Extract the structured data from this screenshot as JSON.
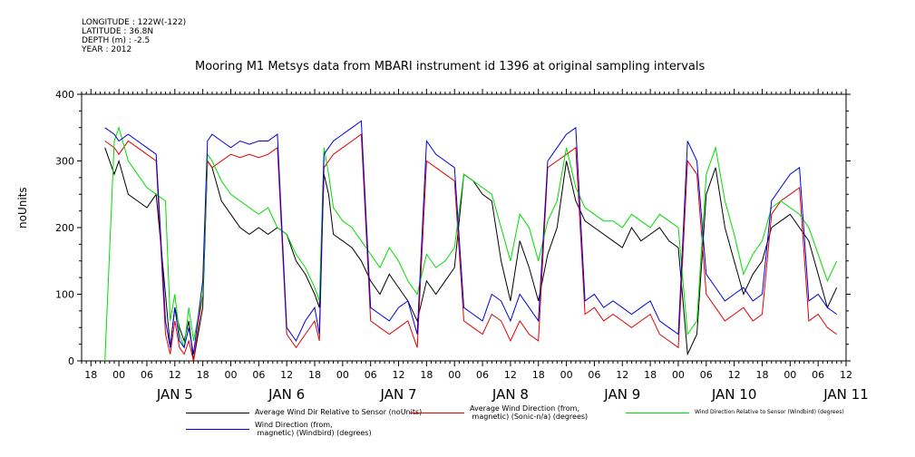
{
  "header": {
    "lines": [
      "LONGITUDE : 122W(-122)",
      "LATITUDE : 36.8N",
      "DEPTH (m) : -2.5",
      "YEAR : 2012"
    ]
  },
  "chart_data": {
    "type": "line",
    "title": "Mooring M1 Metsys data from MBARI instrument id 1396 at original sampling intervals",
    "ylabel": "noUnits",
    "xlabel": "",
    "ylim": [
      0,
      400
    ],
    "y_ticks": [
      0,
      100,
      200,
      300,
      400
    ],
    "xlim_hours": [
      -8,
      156
    ],
    "x_tick_hours": [
      "00",
      "06",
      "12",
      "18"
    ],
    "day_labels": [
      "JAN  5",
      "JAN  6",
      "JAN  7",
      "JAN  8",
      "JAN  9",
      "JAN 10",
      "JAN 11"
    ],
    "grid": false,
    "legend_position": "bottom",
    "series": [
      {
        "name": "Average Wind Dir Relative to Sensor (noUnits)",
        "color": "#000000",
        "x": [
          -3,
          -1,
          0,
          2,
          4,
          6,
          8,
          10,
          11,
          12,
          13,
          14,
          15,
          16,
          18,
          19,
          20,
          22,
          24,
          26,
          28,
          30,
          32,
          34,
          36,
          38,
          40,
          42,
          43,
          44,
          45,
          46,
          48,
          50,
          52,
          54,
          56,
          58,
          60,
          62,
          64,
          66,
          68,
          70,
          72,
          74,
          76,
          78,
          80,
          82,
          84,
          86,
          88,
          90,
          92,
          94,
          96,
          98,
          100,
          102,
          104,
          106,
          108,
          110,
          112,
          114,
          116,
          118,
          120,
          122,
          124,
          126,
          128,
          130,
          132,
          134,
          136,
          138,
          140,
          142,
          144,
          146,
          148,
          150,
          152,
          154
        ],
        "y": [
          320,
          280,
          300,
          250,
          240,
          230,
          250,
          100,
          20,
          80,
          50,
          30,
          60,
          0,
          80,
          300,
          290,
          240,
          220,
          200,
          190,
          200,
          190,
          200,
          190,
          150,
          130,
          100,
          80,
          280,
          250,
          190,
          180,
          170,
          150,
          120,
          100,
          130,
          110,
          90,
          60,
          120,
          100,
          120,
          140,
          280,
          270,
          250,
          240,
          150,
          90,
          180,
          140,
          90,
          160,
          200,
          300,
          240,
          210,
          200,
          190,
          180,
          170,
          200,
          180,
          190,
          200,
          180,
          170,
          10,
          40,
          250,
          290,
          200,
          150,
          100,
          130,
          150,
          200,
          210,
          220,
          200,
          180,
          130,
          80,
          110
        ],
        "label_x": [
          -3,
          -1,
          0,
          2,
          4,
          6,
          8,
          10,
          11,
          12,
          13,
          14,
          15,
          16,
          18,
          19,
          20,
          22,
          24,
          26,
          28,
          30,
          32,
          34,
          36,
          38,
          40,
          42,
          43,
          44,
          45,
          46,
          48,
          50,
          52,
          54,
          56,
          58,
          60,
          62,
          64,
          66,
          68,
          70,
          72,
          74,
          76,
          78,
          80,
          82,
          84,
          86,
          88,
          90,
          92,
          94,
          96,
          98,
          100,
          102,
          104,
          106,
          108,
          110,
          112,
          114,
          116,
          118,
          120,
          122,
          124,
          126,
          128,
          130,
          132,
          134,
          136,
          138,
          140,
          142,
          144,
          146,
          148,
          150,
          152,
          154
        ]
      },
      {
        "name": "Average Wind Direction (from, magnetic) (Sonic-n/a) (degrees)",
        "color": "#e00000",
        "x": [
          -3,
          -1,
          0,
          2,
          4,
          6,
          8,
          10,
          11,
          12,
          13,
          14,
          15,
          16,
          18,
          19,
          20,
          22,
          24,
          26,
          28,
          30,
          32,
          34,
          36,
          38,
          40,
          42,
          43,
          44,
          45,
          46,
          48,
          50,
          52,
          54,
          56,
          58,
          60,
          62,
          64,
          66,
          68,
          70,
          72,
          74,
          76,
          78,
          80,
          82,
          84,
          86,
          88,
          90,
          92,
          94,
          96,
          98,
          100,
          102,
          104,
          106,
          108,
          110,
          112,
          114,
          116,
          118,
          120,
          122,
          124,
          126,
          128,
          130,
          132,
          134,
          136,
          138,
          140,
          142,
          144,
          146,
          148,
          150,
          152,
          154
        ],
        "y": [
          330,
          320,
          310,
          330,
          320,
          310,
          300,
          40,
          10,
          60,
          20,
          10,
          30,
          0,
          100,
          300,
          290,
          300,
          310,
          305,
          310,
          305,
          310,
          320,
          40,
          20,
          40,
          60,
          30,
          290,
          300,
          310,
          320,
          330,
          340,
          60,
          50,
          40,
          50,
          60,
          20,
          300,
          290,
          280,
          270,
          60,
          50,
          40,
          70,
          60,
          30,
          60,
          40,
          30,
          290,
          300,
          310,
          320,
          70,
          80,
          60,
          70,
          60,
          50,
          60,
          70,
          40,
          30,
          20,
          300,
          280,
          100,
          80,
          60,
          70,
          80,
          60,
          70,
          220,
          240,
          250,
          260,
          60,
          70,
          50,
          40
        ],
        "label_x": []
      },
      {
        "name": "Wind Direction Relative to Sensor (Windbird) (degrees)",
        "color": "#00dd00",
        "x": [
          -3,
          -1,
          0,
          2,
          4,
          6,
          8,
          10,
          11,
          12,
          13,
          14,
          15,
          16,
          18,
          19,
          20,
          22,
          24,
          26,
          28,
          30,
          32,
          34,
          36,
          38,
          40,
          42,
          43,
          44,
          45,
          46,
          48,
          50,
          52,
          54,
          56,
          58,
          60,
          62,
          64,
          66,
          68,
          70,
          72,
          74,
          76,
          78,
          80,
          82,
          84,
          86,
          88,
          90,
          92,
          94,
          96,
          98,
          100,
          102,
          104,
          106,
          108,
          110,
          112,
          114,
          116,
          118,
          120,
          122,
          124,
          126,
          128,
          130,
          132,
          134,
          136,
          138,
          140,
          142,
          144,
          146,
          148,
          150,
          152,
          154
        ],
        "y": [
          0,
          330,
          350,
          300,
          280,
          260,
          250,
          240,
          60,
          100,
          40,
          20,
          80,
          30,
          100,
          310,
          300,
          270,
          250,
          240,
          230,
          220,
          230,
          200,
          190,
          160,
          140,
          110,
          90,
          320,
          280,
          230,
          210,
          200,
          180,
          160,
          140,
          170,
          150,
          120,
          100,
          160,
          140,
          150,
          170,
          280,
          270,
          260,
          250,
          200,
          150,
          220,
          200,
          150,
          210,
          240,
          320,
          260,
          230,
          220,
          210,
          210,
          200,
          220,
          210,
          200,
          220,
          210,
          200,
          40,
          60,
          280,
          320,
          240,
          190,
          130,
          160,
          180,
          230,
          240,
          230,
          220,
          200,
          160,
          120,
          150
        ],
        "label_x": []
      },
      {
        "name": "Wind Direction (from, magnetic) (Windbird) (degrees)",
        "color": "#0000dd",
        "x": [
          -3,
          -1,
          0,
          2,
          4,
          6,
          8,
          10,
          11,
          12,
          13,
          14,
          15,
          16,
          18,
          19,
          20,
          22,
          24,
          26,
          28,
          30,
          32,
          34,
          36,
          38,
          40,
          42,
          43,
          44,
          45,
          46,
          48,
          50,
          52,
          54,
          56,
          58,
          60,
          62,
          64,
          66,
          68,
          70,
          72,
          74,
          76,
          78,
          80,
          82,
          84,
          86,
          88,
          90,
          92,
          94,
          96,
          98,
          100,
          102,
          104,
          106,
          108,
          110,
          112,
          114,
          116,
          118,
          120,
          122,
          124,
          126,
          128,
          130,
          132,
          134,
          136,
          138,
          140,
          142,
          144,
          146,
          148,
          150,
          152,
          154
        ],
        "y": [
          350,
          340,
          330,
          340,
          330,
          320,
          310,
          60,
          20,
          80,
          30,
          20,
          50,
          10,
          120,
          330,
          340,
          330,
          320,
          330,
          325,
          330,
          330,
          340,
          50,
          30,
          60,
          80,
          40,
          310,
          320,
          330,
          340,
          350,
          360,
          80,
          70,
          60,
          80,
          90,
          40,
          330,
          310,
          300,
          290,
          80,
          70,
          60,
          100,
          90,
          60,
          100,
          80,
          60,
          300,
          320,
          340,
          350,
          90,
          100,
          80,
          90,
          80,
          70,
          80,
          90,
          60,
          50,
          40,
          330,
          300,
          130,
          110,
          90,
          100,
          110,
          90,
          100,
          240,
          260,
          280,
          290,
          90,
          100,
          80,
          70
        ],
        "label_x": []
      }
    ]
  },
  "legend": [
    {
      "label": "Average Wind Dir Relative to Sensor (noUnits)",
      "color": "#000000"
    },
    {
      "label": "Average Wind Direction (from,\n magnetic) (Sonic-n/a) (degrees)",
      "color": "#e00000"
    },
    {
      "label": "Wind Direction Relative to Sensor (Windbird) (degrees)",
      "color": "#00dd00"
    },
    {
      "label": "Wind Direction (from,\n magnetic) (Windbird) (degrees)",
      "color": "#0000dd"
    }
  ]
}
